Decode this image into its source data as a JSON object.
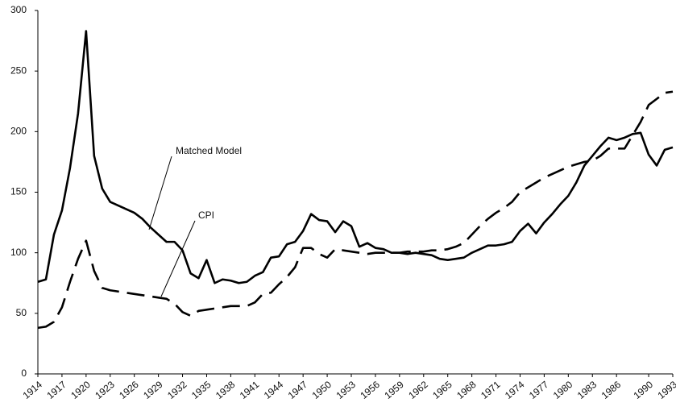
{
  "chart_data": {
    "type": "line",
    "x": [
      1914,
      1915,
      1916,
      1917,
      1918,
      1919,
      1920,
      1921,
      1922,
      1923,
      1924,
      1925,
      1926,
      1927,
      1928,
      1929,
      1930,
      1931,
      1932,
      1933,
      1934,
      1935,
      1936,
      1937,
      1938,
      1939,
      1940,
      1941,
      1942,
      1943,
      1944,
      1945,
      1946,
      1947,
      1948,
      1949,
      1950,
      1951,
      1952,
      1953,
      1954,
      1955,
      1956,
      1957,
      1958,
      1959,
      1960,
      1961,
      1962,
      1963,
      1964,
      1965,
      1966,
      1967,
      1968,
      1969,
      1970,
      1971,
      1972,
      1973,
      1974,
      1975,
      1976,
      1977,
      1978,
      1979,
      1980,
      1981,
      1982,
      1983,
      1984,
      1985,
      1986,
      1987,
      1988,
      1989,
      1990,
      1991,
      1992,
      1993
    ],
    "series": [
      {
        "name": "Matched Model",
        "color": "#000000",
        "line_style": "solid",
        "values": [
          76,
          78,
          115,
          135,
          170,
          215,
          283,
          180,
          153,
          142,
          139,
          136,
          133,
          128,
          121,
          115,
          109,
          109,
          102,
          83,
          79,
          94,
          75,
          78,
          77,
          75,
          76,
          81,
          84,
          96,
          97,
          107,
          109,
          118,
          132,
          127,
          126,
          117,
          126,
          122,
          105,
          108,
          104,
          103,
          100,
          100,
          99,
          100,
          99,
          98,
          95,
          94,
          95,
          96,
          100,
          103,
          106,
          106,
          107,
          109,
          118,
          124,
          116,
          125,
          132,
          140,
          147,
          158,
          172,
          180,
          188,
          195,
          193,
          195,
          198,
          199,
          181,
          172,
          185,
          187
        ]
      },
      {
        "name": "CPI",
        "color": "#000000",
        "line_style": "dashed",
        "values": [
          38,
          39,
          43,
          55,
          76,
          95,
          110,
          85,
          71,
          69,
          68,
          67,
          66,
          65,
          64,
          63,
          62,
          58,
          51,
          48,
          52,
          53,
          54,
          55,
          56,
          56,
          56,
          59,
          66,
          67,
          74,
          80,
          88,
          104,
          104,
          99,
          96,
          103,
          102,
          101,
          100,
          99,
          100,
          100,
          100,
          100,
          101,
          101,
          101,
          102,
          102,
          103,
          105,
          108,
          115,
          122,
          128,
          133,
          137,
          142,
          150,
          154,
          158,
          162,
          165,
          168,
          171,
          173,
          175,
          176,
          180,
          186,
          186,
          186,
          197,
          208,
          222,
          227,
          232,
          233
        ]
      }
    ],
    "xlim": [
      1914,
      1993
    ],
    "xticks": [
      1914,
      1917,
      1920,
      1923,
      1926,
      1929,
      1932,
      1935,
      1938,
      1941,
      1944,
      1947,
      1950,
      1953,
      1956,
      1959,
      1962,
      1965,
      1968,
      1971,
      1974,
      1977,
      1980,
      1983,
      1986,
      1990,
      1993
    ],
    "ylim": [
      0,
      300
    ],
    "yticks": [
      0,
      50,
      100,
      150,
      200,
      250,
      300
    ],
    "grid": false
  }
}
